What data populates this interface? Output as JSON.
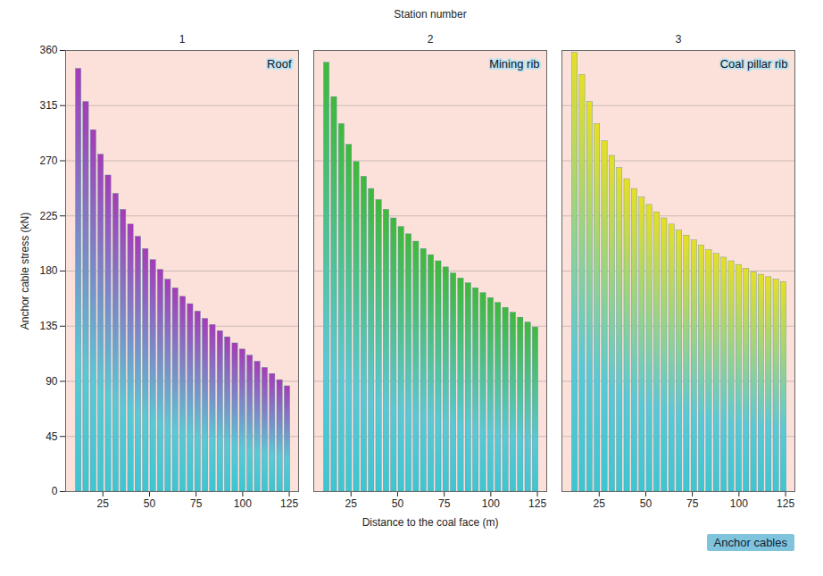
{
  "chart_data": {
    "type": "bar",
    "xlabel": "Distance to the coal face (m)",
    "ylabel": "Anchor cable stress (kN)",
    "facet_label": "Station number",
    "stations": [
      1,
      2,
      3
    ],
    "annotations": [
      "Anchor cables"
    ],
    "x": [
      12,
      16,
      20,
      24,
      28,
      32,
      36,
      40,
      44,
      48,
      52,
      56,
      60,
      64,
      68,
      72,
      76,
      80,
      84,
      88,
      92,
      96,
      100,
      104,
      108,
      112,
      116,
      120,
      124
    ],
    "series": [
      {
        "name": "Roof",
        "color": "#a53bb8",
        "values": [
          345,
          318,
          295,
          275,
          258,
          243,
          230,
          218,
          208,
          198,
          189,
          181,
          173,
          166,
          159,
          153,
          147,
          141,
          136,
          131,
          126,
          121,
          116,
          111,
          106,
          101,
          96,
          91,
          86
        ]
      },
      {
        "name": "Mining rib",
        "color": "#3fb83a",
        "values": [
          350,
          322,
          300,
          283,
          269,
          257,
          247,
          238,
          230,
          223,
          216,
          210,
          204,
          198,
          193,
          188,
          183,
          178,
          174,
          170,
          166,
          162,
          158,
          154,
          150,
          146,
          142,
          138,
          134
        ]
      },
      {
        "name": "Coal pillar rib",
        "color": "#e6df24",
        "values": [
          358,
          340,
          318,
          300,
          286,
          274,
          264,
          255,
          247,
          240,
          234,
          228,
          223,
          218,
          213,
          209,
          205,
          201,
          197,
          194,
          191,
          188,
          185,
          182,
          179,
          177,
          175,
          173,
          171
        ]
      }
    ],
    "xlim": [
      5,
      130
    ],
    "xticks": [
      25,
      50,
      75,
      100,
      125
    ],
    "ylim": [
      0,
      360
    ],
    "yticks": [
      0,
      45,
      90,
      135,
      180,
      225,
      270,
      315,
      360
    ],
    "grid": true,
    "data_labels": false
  }
}
